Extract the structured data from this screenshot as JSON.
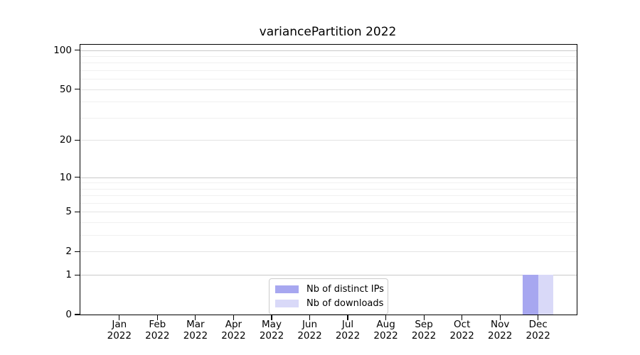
{
  "title": "variancePartition 2022",
  "chart_data": {
    "type": "bar",
    "title": "variancePartition 2022",
    "categories": [
      "Jan",
      "Feb",
      "Mar",
      "Apr",
      "May",
      "Jun",
      "Jul",
      "Aug",
      "Sep",
      "Oct",
      "Nov",
      "Dec"
    ],
    "category_year": "2022",
    "series": [
      {
        "name": "Nb of distinct IPs",
        "color": "#a7a7f0",
        "values": [
          0,
          0,
          0,
          0,
          0,
          0,
          0,
          0,
          0,
          0,
          0,
          1
        ]
      },
      {
        "name": "Nb of downloads",
        "color": "#d9d9f8",
        "values": [
          0,
          0,
          0,
          0,
          0,
          0,
          0,
          0,
          0,
          0,
          0,
          1
        ]
      }
    ],
    "xlabel": "",
    "ylabel": "",
    "yscale": "log1p",
    "ylim": [
      0,
      110
    ],
    "yticks": [
      0,
      1,
      2,
      5,
      10,
      20,
      50,
      100
    ],
    "ytick_labels": [
      "0",
      "1",
      "2",
      "5",
      "10",
      "20",
      "50",
      "100"
    ],
    "minor_yticks": [
      3,
      4,
      6,
      7,
      8,
      9,
      30,
      40,
      60,
      70,
      80,
      90
    ],
    "emphasized_gridlines": [
      1,
      10,
      100
    ],
    "grid": true,
    "legend_position": "lower center",
    "colors": {
      "spine": "#000000",
      "grid_major": "#c9c9c9",
      "grid_mid": "#e3e3e3",
      "grid_minor": "#f0f0f0",
      "background": "#ffffff"
    }
  },
  "legend": {
    "items": [
      {
        "label": "Nb of distinct IPs"
      },
      {
        "label": "Nb of downloads"
      }
    ]
  }
}
